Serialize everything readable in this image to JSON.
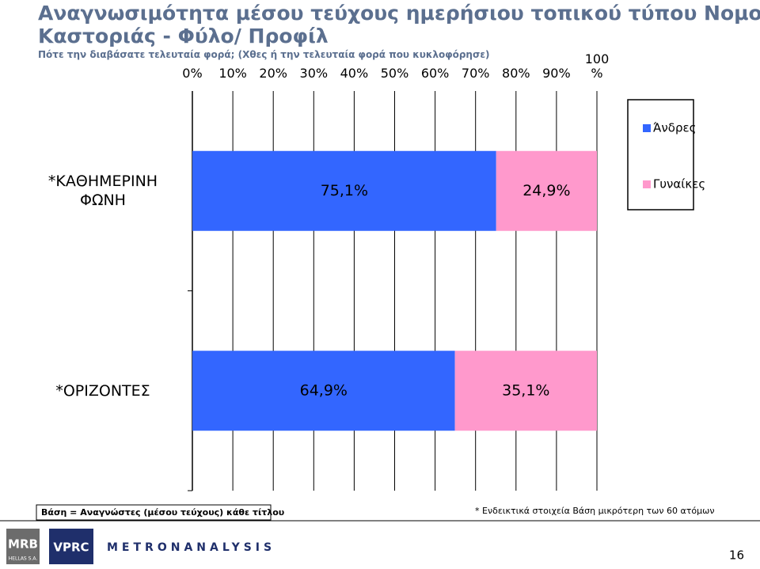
{
  "header": {
    "title": "Αναγνωσιμότητα μέσου τεύχους ημερήσιου τοπικού τύπου Νομού Καστοριάς - Φύλο/ Προφίλ",
    "subtitle": "Πότε την διαβάσατε τελευταία φορά; (Χθες ή την τελευταία φορά που κυκλοφόρησε)"
  },
  "chart_data": {
    "type": "stacked-bar-horizontal",
    "categories": [
      "*ΚΑΘΗΜΕΡΙΝΗ ΦΩΝΗ",
      "*ΟΡΙΖΟΝΤΕΣ"
    ],
    "series": [
      {
        "name": "Άνδρες",
        "color": "#3366ff",
        "values": [
          75.1,
          64.9
        ],
        "value_labels": [
          "75,1%",
          "64,9%"
        ]
      },
      {
        "name": "Γυναίκες",
        "color": "#ff99cc",
        "values": [
          24.9,
          35.1
        ],
        "value_labels": [
          "24,9%",
          "35,1%"
        ]
      }
    ],
    "xlim": [
      0,
      100
    ],
    "xticks": [
      {
        "value": 0,
        "label": "0%"
      },
      {
        "value": 10,
        "label": "10%"
      },
      {
        "value": 20,
        "label": "20%"
      },
      {
        "value": 30,
        "label": "30%"
      },
      {
        "value": 40,
        "label": "40%"
      },
      {
        "value": 50,
        "label": "50%"
      },
      {
        "value": 60,
        "label": "60%"
      },
      {
        "value": 70,
        "label": "70%"
      },
      {
        "value": 80,
        "label": "80%"
      },
      {
        "value": 90,
        "label": "90%"
      },
      {
        "value": 100,
        "label": "100 %"
      }
    ],
    "grid": true,
    "legend": "right"
  },
  "footer": {
    "base_note": "Βάση = Αναγνώστες (μέσου τεύχους) κάθε τίτλου",
    "sample_note": "* Ενδεικτικά στοιχεία  Βάση μικρότερη των 60 ατόμων",
    "logos": [
      "MRB",
      "HELLAS S.A.",
      "VPRC",
      "METRONANALYSIS"
    ],
    "page_number": "16"
  }
}
